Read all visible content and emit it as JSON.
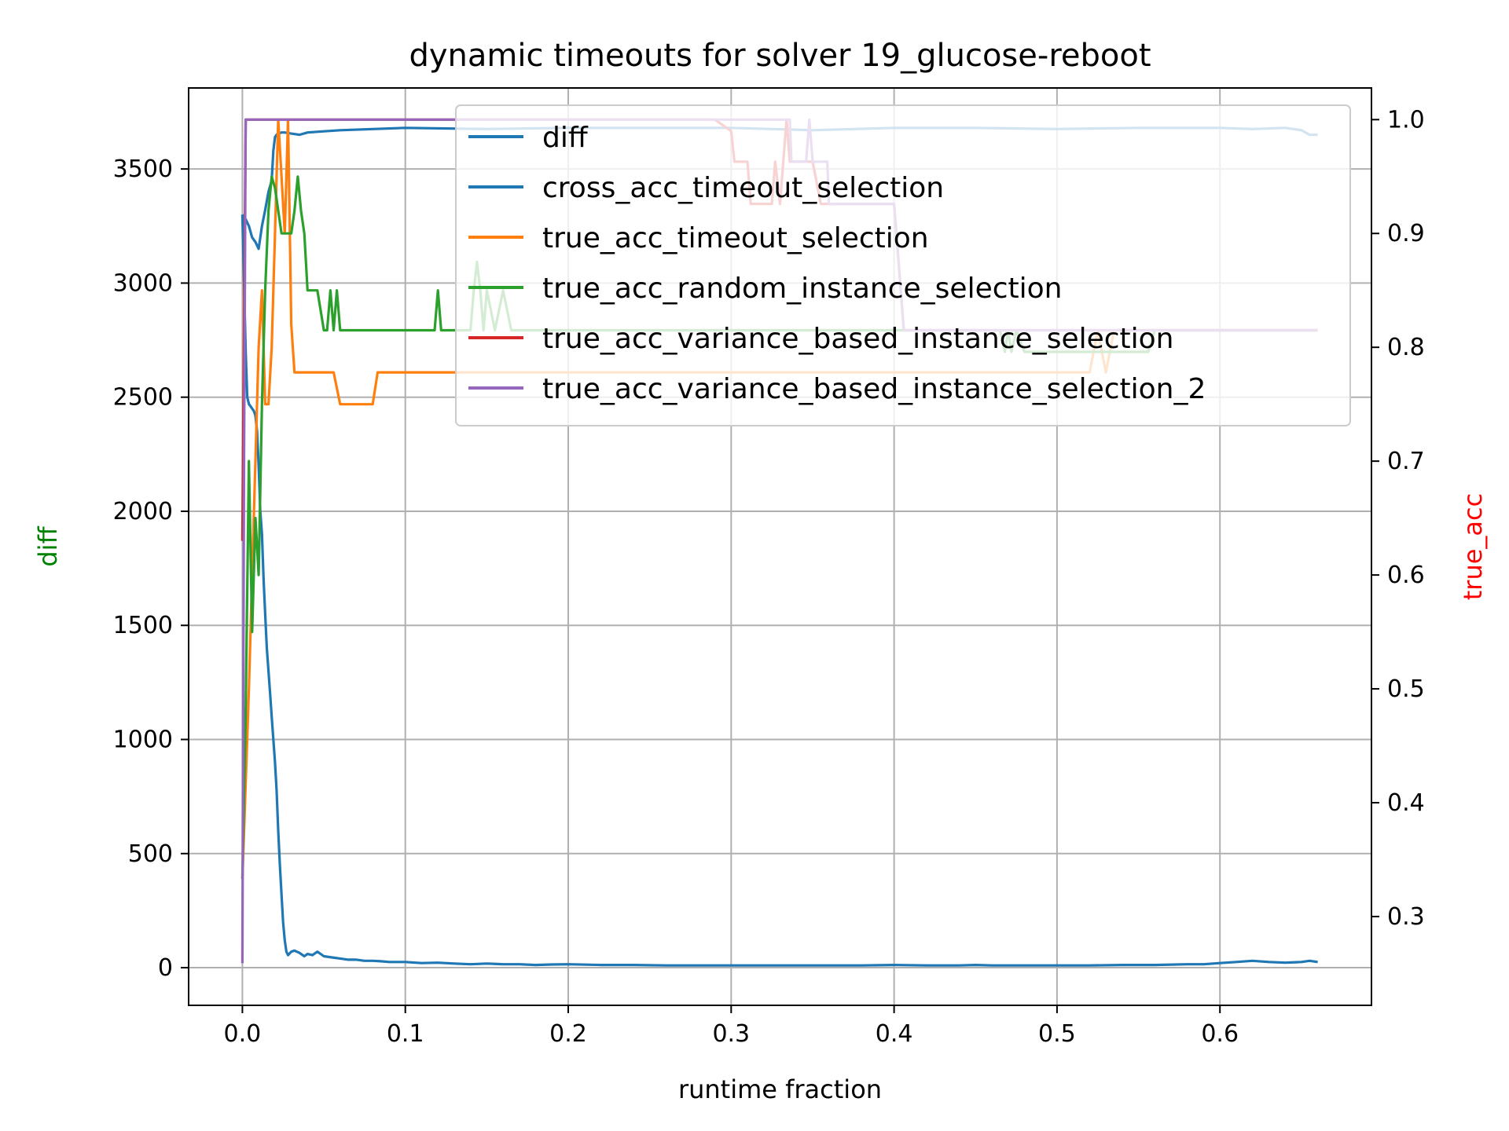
{
  "chart_data": {
    "type": "line",
    "title": "dynamic timeouts for solver 19_glucose-reboot",
    "xlabel": "runtime fraction",
    "ylabel_left": "diff",
    "ylabel_right": "true_acc",
    "xlim": [
      -0.033,
      0.693
    ],
    "ylim_left": [
      -165,
      3855
    ],
    "ylim_right": [
      0.222,
      1.0278
    ],
    "x_ticks": [
      0.0,
      0.1,
      0.2,
      0.3,
      0.4,
      0.5,
      0.6
    ],
    "x_tick_labels": [
      "0.0",
      "0.1",
      "0.2",
      "0.3",
      "0.4",
      "0.5",
      "0.6"
    ],
    "y_left_ticks": [
      0,
      500,
      1000,
      1500,
      2000,
      2500,
      3000,
      3500
    ],
    "y_left_tick_labels": [
      "0",
      "500",
      "1000",
      "1500",
      "2000",
      "2500",
      "3000",
      "3500"
    ],
    "y_right_ticks": [
      0.3,
      0.4,
      0.5,
      0.6,
      0.7,
      0.8,
      0.9,
      1.0
    ],
    "y_right_tick_labels": [
      "0.3",
      "0.4",
      "0.5",
      "0.6",
      "0.7",
      "0.8",
      "0.9",
      "1.0"
    ],
    "grid": true,
    "legend_position": "top-right",
    "colors": {
      "diff_axis_label": "#008000",
      "true_acc_axis_label": "#ff0000"
    },
    "series": [
      {
        "name": "diff",
        "axis": "left",
        "color": "#1f77b4",
        "x": [
          0.0,
          0.001,
          0.002,
          0.003,
          0.004,
          0.005,
          0.006,
          0.007,
          0.008,
          0.009,
          0.01,
          0.011,
          0.012,
          0.013,
          0.014,
          0.015,
          0.016,
          0.017,
          0.018,
          0.019,
          0.02,
          0.021,
          0.022,
          0.023,
          0.024,
          0.025,
          0.026,
          0.027,
          0.028,
          0.03,
          0.032,
          0.035,
          0.038,
          0.04,
          0.043,
          0.046,
          0.05,
          0.055,
          0.06,
          0.065,
          0.07,
          0.075,
          0.08,
          0.085,
          0.09,
          0.095,
          0.1,
          0.11,
          0.12,
          0.13,
          0.14,
          0.15,
          0.16,
          0.17,
          0.18,
          0.19,
          0.2,
          0.22,
          0.24,
          0.26,
          0.28,
          0.3,
          0.32,
          0.34,
          0.36,
          0.38,
          0.4,
          0.42,
          0.44,
          0.45,
          0.46,
          0.48,
          0.5,
          0.52,
          0.54,
          0.56,
          0.58,
          0.59,
          0.6,
          0.61,
          0.62,
          0.63,
          0.64,
          0.65,
          0.655,
          0.66
        ],
        "y": [
          3300,
          3000,
          2700,
          2500,
          2470,
          2460,
          2450,
          2440,
          2420,
          2350,
          2200,
          2000,
          1900,
          1700,
          1550,
          1400,
          1300,
          1200,
          1100,
          1000,
          900,
          780,
          600,
          450,
          320,
          200,
          120,
          70,
          55,
          70,
          75,
          65,
          50,
          60,
          55,
          70,
          50,
          45,
          40,
          35,
          35,
          30,
          30,
          28,
          25,
          25,
          25,
          20,
          22,
          18,
          15,
          18,
          15,
          15,
          12,
          14,
          15,
          12,
          12,
          10,
          10,
          10,
          10,
          10,
          10,
          10,
          12,
          10,
          10,
          12,
          10,
          10,
          10,
          10,
          12,
          12,
          15,
          15,
          20,
          25,
          30,
          25,
          22,
          25,
          30,
          25
        ]
      },
      {
        "name": "cross_acc_timeout_selection",
        "axis": "left",
        "color": "#1f77b4",
        "x": [
          0.0,
          0.002,
          0.004,
          0.006,
          0.008,
          0.01,
          0.012,
          0.014,
          0.016,
          0.018,
          0.019,
          0.02,
          0.021,
          0.022,
          0.024,
          0.026,
          0.03,
          0.035,
          0.04,
          0.05,
          0.06,
          0.08,
          0.1,
          0.15,
          0.2,
          0.25,
          0.3,
          0.35,
          0.4,
          0.45,
          0.5,
          0.55,
          0.6,
          0.62,
          0.64,
          0.65,
          0.655,
          0.66
        ],
        "y": [
          3300,
          3280,
          3250,
          3200,
          3180,
          3150,
          3250,
          3320,
          3400,
          3450,
          3580,
          3640,
          3650,
          3655,
          3660,
          3660,
          3655,
          3650,
          3660,
          3665,
          3670,
          3675,
          3680,
          3675,
          3680,
          3680,
          3680,
          3670,
          3680,
          3680,
          3675,
          3680,
          3680,
          3675,
          3680,
          3670,
          3650,
          3650
        ]
      },
      {
        "name": "true_acc_timeout_selection",
        "axis": "right",
        "color": "#ff7f0e",
        "x": [
          0.0,
          0.002,
          0.004,
          0.006,
          0.008,
          0.01,
          0.012,
          0.014,
          0.016,
          0.018,
          0.02,
          0.022,
          0.024,
          0.026,
          0.028,
          0.03,
          0.032,
          0.04,
          0.05,
          0.056,
          0.06,
          0.07,
          0.08,
          0.083,
          0.09,
          0.12,
          0.2,
          0.3,
          0.4,
          0.47,
          0.5,
          0.52,
          0.525,
          0.53,
          0.535,
          0.54,
          0.55,
          0.56,
          0.66
        ],
        "y": [
          0.333,
          0.417,
          0.5,
          0.6,
          0.7,
          0.8,
          0.85,
          0.75,
          0.75,
          0.8,
          0.9,
          1.0,
          0.95,
          0.9,
          1.0,
          0.82,
          0.778,
          0.778,
          0.778,
          0.778,
          0.75,
          0.75,
          0.75,
          0.778,
          0.778,
          0.778,
          0.778,
          0.778,
          0.778,
          0.778,
          0.778,
          0.778,
          0.815,
          0.778,
          0.815,
          0.815,
          0.815,
          0.815,
          0.815
        ]
      },
      {
        "name": "true_acc_random_instance_selection",
        "axis": "right",
        "color": "#2ca02c",
        "x": [
          0.0,
          0.002,
          0.004,
          0.006,
          0.008,
          0.01,
          0.012,
          0.014,
          0.016,
          0.018,
          0.02,
          0.022,
          0.024,
          0.026,
          0.028,
          0.03,
          0.032,
          0.034,
          0.036,
          0.038,
          0.04,
          0.042,
          0.044,
          0.046,
          0.05,
          0.052,
          0.054,
          0.056,
          0.058,
          0.06,
          0.064,
          0.07,
          0.08,
          0.1,
          0.118,
          0.12,
          0.122,
          0.13,
          0.14,
          0.142,
          0.144,
          0.146,
          0.148,
          0.15,
          0.155,
          0.16,
          0.165,
          0.17,
          0.175,
          0.18,
          0.2,
          0.3,
          0.4,
          0.465,
          0.468,
          0.47,
          0.472,
          0.475,
          0.48,
          0.5,
          0.54,
          0.55,
          0.556,
          0.56,
          0.66
        ],
        "y": [
          0.333,
          0.48,
          0.7,
          0.55,
          0.65,
          0.6,
          0.75,
          0.85,
          0.92,
          0.95,
          0.94,
          0.92,
          0.9,
          0.9,
          0.9,
          0.9,
          0.92,
          0.95,
          0.92,
          0.9,
          0.85,
          0.85,
          0.85,
          0.85,
          0.815,
          0.815,
          0.85,
          0.815,
          0.85,
          0.815,
          0.815,
          0.815,
          0.815,
          0.815,
          0.815,
          0.85,
          0.815,
          0.815,
          0.815,
          0.85,
          0.875,
          0.85,
          0.815,
          0.85,
          0.815,
          0.85,
          0.815,
          0.815,
          0.815,
          0.815,
          0.815,
          0.815,
          0.815,
          0.815,
          0.796,
          0.815,
          0.796,
          0.815,
          0.796,
          0.796,
          0.796,
          0.796,
          0.796,
          0.815,
          0.815
        ]
      },
      {
        "name": "true_acc_variance_based_instance_selection",
        "axis": "right",
        "color": "#d62728",
        "x": [
          0.0,
          0.002,
          0.01,
          0.02,
          0.1,
          0.2,
          0.29,
          0.3,
          0.302,
          0.31,
          0.312,
          0.325,
          0.327,
          0.33,
          0.332,
          0.334,
          0.336,
          0.34,
          0.345,
          0.35,
          0.355,
          0.36,
          0.38,
          0.4,
          0.402,
          0.404,
          0.406,
          0.41,
          0.45,
          0.5,
          0.55,
          0.6,
          0.66
        ],
        "y": [
          0.63,
          1.0,
          1.0,
          1.0,
          1.0,
          1.0,
          1.0,
          0.99,
          0.963,
          0.963,
          0.926,
          0.926,
          0.963,
          0.926,
          0.963,
          1.0,
          0.963,
          0.963,
          0.963,
          0.963,
          0.926,
          0.926,
          0.926,
          0.926,
          0.889,
          0.852,
          0.815,
          0.815,
          0.815,
          0.815,
          0.815,
          0.815,
          0.815
        ]
      },
      {
        "name": "true_acc_variance_based_instance_selection_2",
        "axis": "right",
        "color": "#9467bd",
        "x": [
          0.0,
          0.001,
          0.002,
          0.01,
          0.1,
          0.2,
          0.3,
          0.33,
          0.336,
          0.337,
          0.338,
          0.34,
          0.346,
          0.348,
          0.35,
          0.355,
          0.359,
          0.36,
          0.38,
          0.4,
          0.402,
          0.404,
          0.406,
          0.41,
          0.45,
          0.5,
          0.55,
          0.6,
          0.66
        ],
        "y": [
          0.259,
          0.7,
          1.0,
          1.0,
          1.0,
          1.0,
          1.0,
          1.0,
          1.0,
          0.963,
          0.963,
          0.963,
          0.963,
          1.0,
          0.963,
          0.963,
          0.963,
          0.926,
          0.926,
          0.926,
          0.889,
          0.852,
          0.815,
          0.815,
          0.815,
          0.815,
          0.815,
          0.815,
          0.815
        ]
      }
    ]
  }
}
